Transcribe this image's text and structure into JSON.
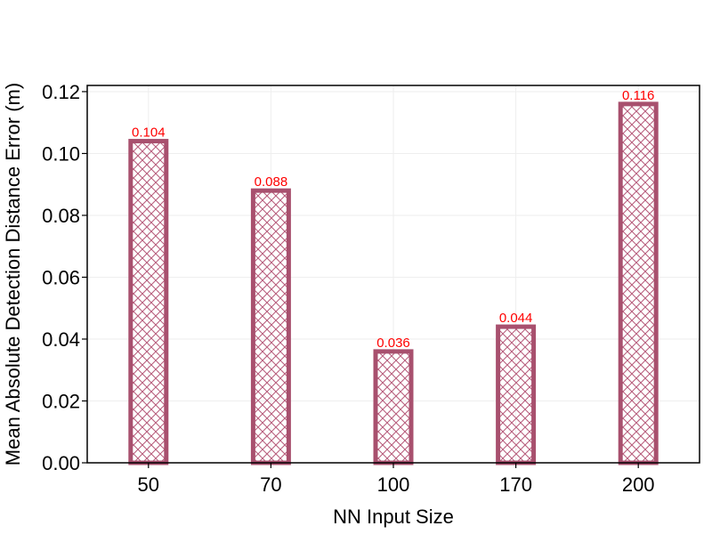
{
  "chart_data": {
    "type": "bar",
    "title": "",
    "xlabel": "NN Input Size",
    "ylabel": "Mean Absolute Detection Distance Error (m)",
    "categories": [
      "50",
      "70",
      "100",
      "170",
      "200"
    ],
    "values": [
      0.104,
      0.088,
      0.036,
      0.044,
      0.116
    ],
    "data_labels": [
      "0.104",
      "0.088",
      "0.036",
      "0.044",
      "0.116"
    ],
    "ylim": [
      0,
      0.122
    ],
    "yticks": [
      0.0,
      0.02,
      0.04,
      0.06,
      0.08,
      0.1,
      0.12
    ],
    "ytick_labels": [
      "0.00",
      "0.02",
      "0.04",
      "0.06",
      "0.08",
      "0.10",
      "0.12"
    ],
    "grid": true,
    "bar_style": "hatched crosshatch, hollow",
    "colors": {
      "bar_edge": "#a8506e",
      "hatch": "#b85f7e",
      "data_label": "#ff0000",
      "grid": "#eeeeee",
      "axis": "#000000"
    }
  }
}
